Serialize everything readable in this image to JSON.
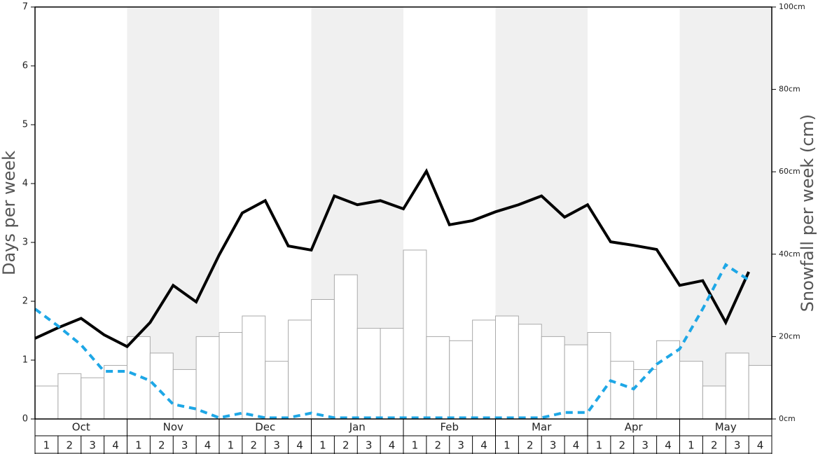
{
  "chart_data": {
    "type": "bar",
    "y_label": "Days per week",
    "y2_label": "Snowfall per week (cm)",
    "months": [
      "Oct",
      "Nov",
      "Dec",
      "Jan",
      "Feb",
      "Mar",
      "Apr",
      "May"
    ],
    "categories": [
      "1",
      "2",
      "3",
      "4",
      "1",
      "2",
      "3",
      "4",
      "1",
      "2",
      "3",
      "4",
      "1",
      "2",
      "3",
      "4",
      "1",
      "2",
      "3",
      "4",
      "1",
      "2",
      "3",
      "4",
      "1",
      "2",
      "3",
      "4",
      "1",
      "2",
      "3",
      "4"
    ],
    "series": [
      {
        "type": "bar",
        "axis": "y2",
        "color": "#ffffff",
        "values": [
          8,
          11,
          10,
          13,
          20,
          16,
          12,
          20,
          21,
          25,
          14,
          24,
          29,
          35,
          22,
          22,
          41,
          20,
          19,
          24,
          25,
          23,
          20,
          18,
          21,
          14,
          12,
          19,
          14,
          8,
          16,
          13
        ]
      },
      {
        "type": "line",
        "color": "#000000",
        "values": [
          1.37,
          1.55,
          1.71,
          1.43,
          1.23,
          1.64,
          2.27,
          1.99,
          2.79,
          3.5,
          3.71,
          2.94,
          2.87,
          3.79,
          3.64,
          3.71,
          3.57,
          4.21,
          3.3,
          3.37,
          3.52,
          3.64,
          3.79,
          3.43,
          3.64,
          3.01,
          2.95,
          2.88,
          2.27,
          2.35,
          1.64,
          2.5
        ]
      },
      {
        "type": "line",
        "color": "#1ea7e6",
        "dashed": true,
        "values": [
          1.87,
          1.58,
          1.26,
          0.81,
          0.81,
          0.65,
          0.25,
          0.17,
          0.02,
          0.1,
          0.02,
          0.02,
          0.1,
          0.02,
          0.02,
          0.02,
          0.02,
          0.02,
          0.02,
          0.02,
          0.02,
          0.02,
          0.02,
          0.11,
          0.11,
          0.65,
          0.51,
          0.93,
          1.19,
          1.87,
          2.62,
          2.36
        ]
      }
    ],
    "ylim": [
      0,
      7
    ],
    "yticks": [
      0,
      1,
      2,
      3,
      4,
      5,
      6,
      7
    ],
    "y2lim": [
      0,
      100
    ],
    "y2ticks": [
      {
        "value": 0,
        "label": "0cm"
      },
      {
        "value": 20,
        "label": "20cm"
      },
      {
        "value": 40,
        "label": "40cm"
      },
      {
        "value": 60,
        "label": "60cm"
      },
      {
        "value": 80,
        "label": "80cm"
      },
      {
        "value": 100,
        "label": "100cm"
      }
    ],
    "shade_color": "#f0f0f0"
  }
}
